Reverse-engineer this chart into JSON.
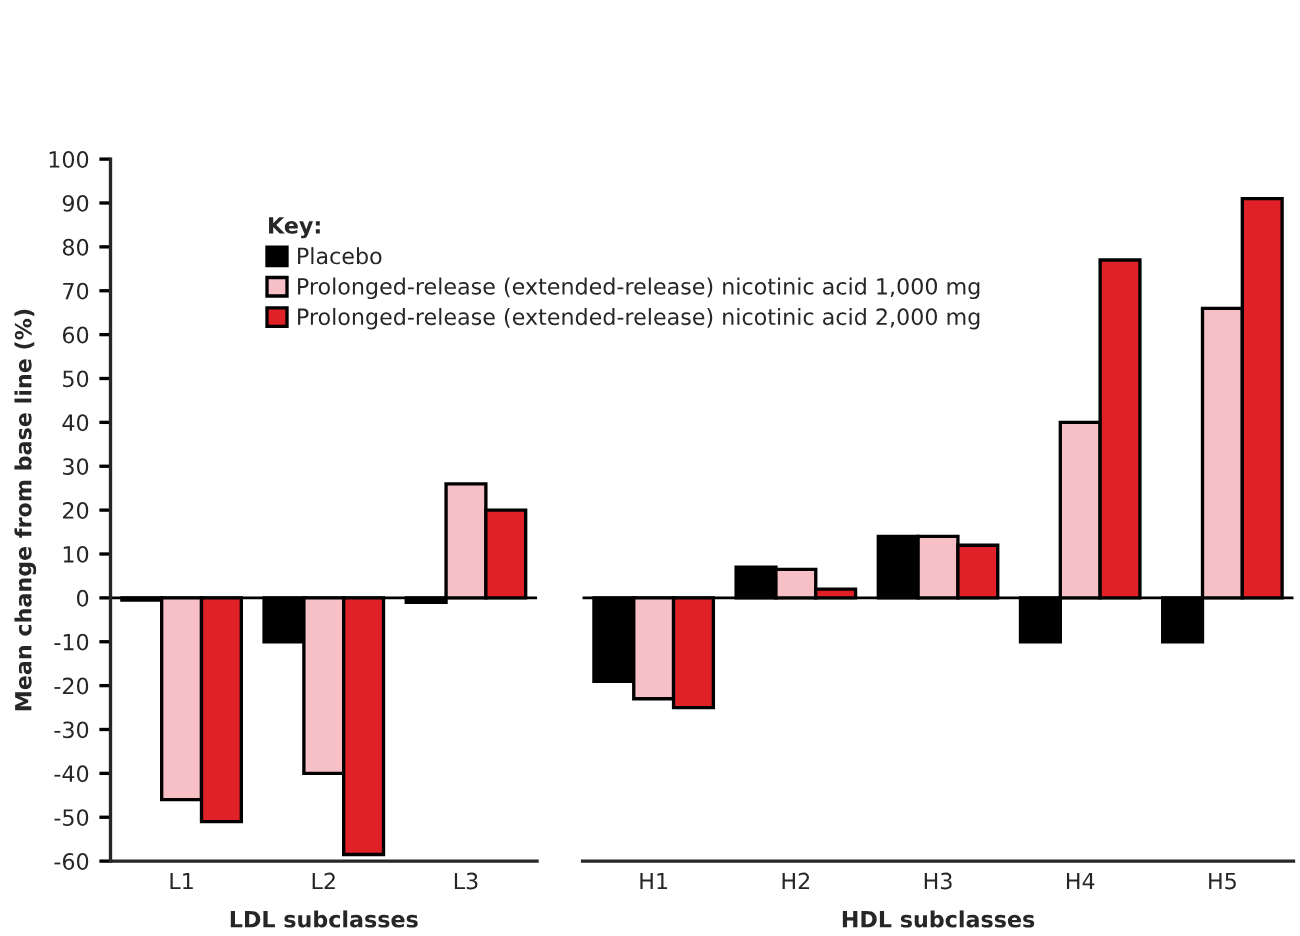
{
  "chart_data": [
    {
      "type": "bar",
      "xlabel": "LDL subclasses",
      "ylabel": "Mean change from base line (%)",
      "categories": [
        "L1",
        "L2",
        "L3"
      ],
      "series": [
        {
          "color": "#000000",
          "values": [
            -0.5,
            -10,
            -1
          ]
        },
        {
          "color": "#f7c0c6",
          "values": [
            -46,
            -40,
            26
          ]
        },
        {
          "color": "#e02228",
          "values": [
            -51,
            -58.5,
            20
          ]
        }
      ],
      "ylim": [
        -60,
        100
      ],
      "yticks": [
        -60,
        -50,
        -40,
        -30,
        -20,
        -10,
        0,
        10,
        20,
        30,
        40,
        50,
        60,
        70,
        80,
        90,
        100
      ],
      "ref_lines": [
        {
          "axis": "y",
          "value": 0,
          "color": "#000000"
        }
      ]
    },
    {
      "type": "bar",
      "xlabel": "HDL subclasses",
      "tick_labels": "x",
      "legend_title": "Key:",
      "legend": "top left",
      "categories": [
        "H1",
        "H2",
        "H3",
        "H4",
        "H5"
      ],
      "series": [
        {
          "name": "Placebo",
          "color": "#000000",
          "values": [
            -19,
            7,
            14,
            -10,
            -10
          ]
        },
        {
          "name": "Prolonged-release (extended-release) nicotinic acid 1,000 mg",
          "color": "#f7c0c6",
          "values": [
            -23,
            6.5,
            14,
            40,
            66
          ]
        },
        {
          "name": "Prolonged-release (extended-release) nicotinic acid 2,000 mg",
          "color": "#e02228",
          "values": [
            -25,
            2,
            12,
            77,
            91
          ]
        }
      ],
      "ylim": [
        -60,
        100
      ],
      "yticks": [
        -60,
        -50,
        -40,
        -30,
        -20,
        -10,
        0,
        10,
        20,
        30,
        40,
        50,
        60,
        70,
        80,
        90,
        100
      ],
      "ref_lines": [
        {
          "axis": "y",
          "value": 0,
          "color": "#000000"
        }
      ]
    }
  ]
}
